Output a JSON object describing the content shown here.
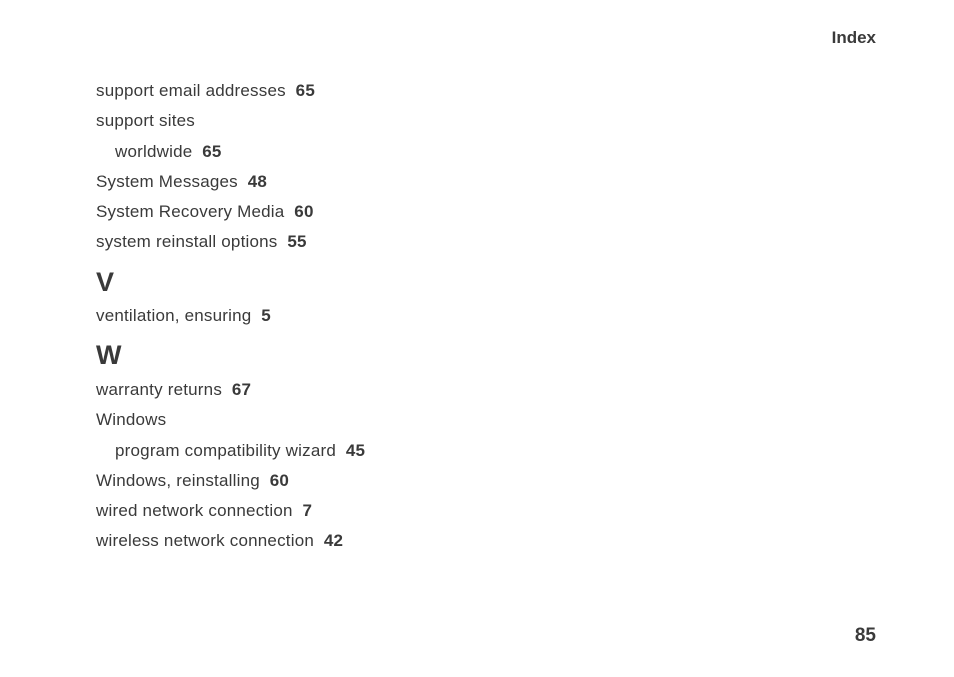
{
  "header": {
    "title": "Index"
  },
  "sections": {
    "s_pre": {
      "entries": [
        {
          "term": "support email addresses",
          "page": "65",
          "indent": 0
        },
        {
          "term": "support sites",
          "page": "",
          "indent": 0
        },
        {
          "term": "worldwide",
          "page": "65",
          "indent": 1
        },
        {
          "term": "System Messages",
          "page": "48",
          "indent": 0
        },
        {
          "term": "System Recovery Media",
          "page": "60",
          "indent": 0
        },
        {
          "term": "system reinstall options",
          "page": "55",
          "indent": 0
        }
      ]
    },
    "v": {
      "letter": "V",
      "entries": [
        {
          "term": "ventilation, ensuring",
          "page": "5",
          "indent": 0
        }
      ]
    },
    "w": {
      "letter": "W",
      "entries": [
        {
          "term": "warranty returns",
          "page": "67",
          "indent": 0
        },
        {
          "term": "Windows",
          "page": "",
          "indent": 0
        },
        {
          "term": "program compatibility wizard",
          "page": "45",
          "indent": 1
        },
        {
          "term": "Windows, reinstalling",
          "page": "60",
          "indent": 0
        },
        {
          "term": "wired network connection",
          "page": "7",
          "indent": 0
        },
        {
          "term": "wireless network connection",
          "page": "42",
          "indent": 0
        }
      ]
    }
  },
  "pageNumber": "85"
}
